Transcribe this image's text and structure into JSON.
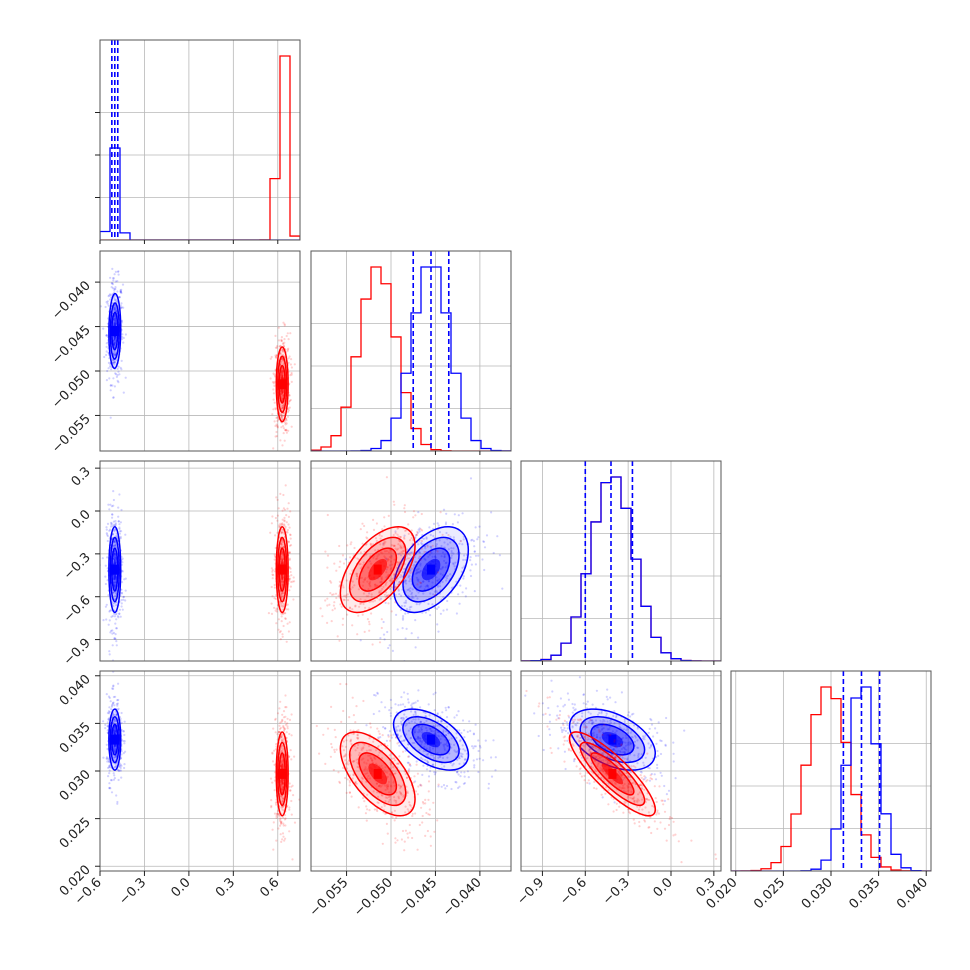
{
  "chart_data": {
    "type": "corner",
    "title": "",
    "parameters": [
      {
        "index": 0,
        "range": [
          -0.6,
          0.75
        ],
        "ticks": [
          -0.6,
          -0.3,
          0.0,
          0.3,
          0.6
        ],
        "tick_labels": [
          "−0.6",
          "−0.3",
          "0.0",
          "0.3",
          "0.6"
        ]
      },
      {
        "index": 1,
        "range": [
          -0.059,
          -0.0365
        ],
        "ticks": [
          -0.055,
          -0.05,
          -0.045,
          -0.04
        ],
        "tick_labels": [
          "−0.055",
          "−0.050",
          "−0.045",
          "−0.040"
        ]
      },
      {
        "index": 2,
        "range": [
          -1.05,
          0.35
        ],
        "ticks": [
          -0.9,
          -0.6,
          -0.3,
          0.0,
          0.3
        ],
        "tick_labels": [
          "−0.9",
          "−0.6",
          "−0.3",
          "0.0",
          "0.3"
        ]
      },
      {
        "index": 3,
        "range": [
          0.0195,
          0.0405
        ],
        "ticks": [
          0.02,
          0.025,
          0.03,
          0.035,
          0.04
        ],
        "tick_labels": [
          "0.020",
          "0.025",
          "0.030",
          "0.035",
          "0.040"
        ]
      }
    ],
    "series": [
      {
        "color": "#0000ff",
        "mean": [
          -0.5,
          -0.0455,
          -0.41,
          0.0333
        ],
        "std": [
          0.02,
          0.0021,
          0.15,
          0.0016
        ],
        "quantile_lines": [
          [
            -0.52,
            -0.5,
            -0.48
          ],
          [
            -0.0475,
            -0.0455,
            -0.0435
          ],
          [
            -0.6,
            -0.42,
            -0.27
          ],
          [
            0.0313,
            0.0332,
            0.0351
          ]
        ],
        "hist_peak_fraction": [
          0.5,
          1.0,
          1.0,
          1.0
        ],
        "correlations": [
          [
            0,
            1,
            0.05
          ],
          [
            0,
            2,
            0.0
          ],
          [
            0,
            3,
            0.0
          ],
          [
            1,
            2,
            0.45
          ],
          [
            1,
            3,
            -0.5
          ],
          [
            2,
            3,
            -0.45
          ]
        ]
      },
      {
        "color": "#ff0000",
        "mean": [
          0.63,
          -0.0515,
          -0.41,
          0.0297
        ],
        "std": [
          0.02,
          0.0021,
          0.15,
          0.0022
        ],
        "quantile_lines": [],
        "hist_peak_fraction": [
          1.0,
          1.0,
          1.0,
          1.0
        ],
        "correlations": [
          [
            0,
            1,
            0.0
          ],
          [
            0,
            2,
            0.0
          ],
          [
            0,
            3,
            0.0
          ],
          [
            1,
            2,
            0.55
          ],
          [
            1,
            3,
            -0.6
          ],
          [
            2,
            3,
            -0.85
          ]
        ]
      }
    ],
    "contour_levels_sigma": [
      0.5,
      1.0,
      1.5,
      2.0
    ],
    "scatter_points_per_series": 420,
    "grid": true,
    "legend": "none"
  }
}
